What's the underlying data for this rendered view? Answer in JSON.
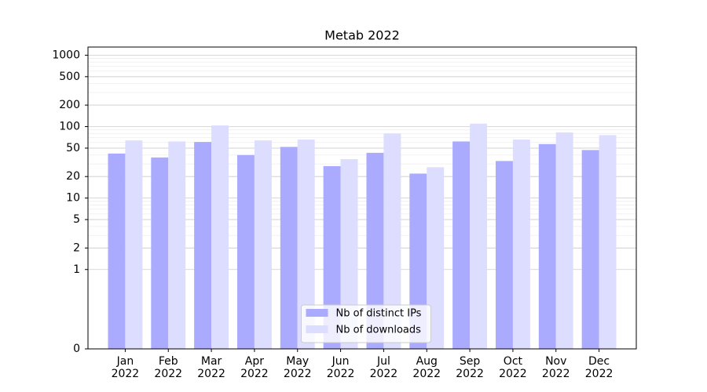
{
  "chart_data": {
    "type": "bar",
    "title": "Metab 2022",
    "categories": [
      "Jan 2022",
      "Feb 2022",
      "Mar 2022",
      "Apr 2022",
      "May 2022",
      "Jun 2022",
      "Jul 2022",
      "Aug 2022",
      "Sep 2022",
      "Oct 2022",
      "Nov 2022",
      "Dec 2022"
    ],
    "series": [
      {
        "name": "Nb of distinct IPs",
        "color": "#aaaaff",
        "values": [
          42,
          37,
          61,
          40,
          52,
          28,
          43,
          22,
          62,
          33,
          57,
          47
        ]
      },
      {
        "name": "Nb of downloads",
        "color": "#ddddff",
        "values": [
          64,
          62,
          104,
          64,
          66,
          35,
          80,
          27,
          110,
          66,
          83,
          76
        ]
      }
    ],
    "yscale": "symlog",
    "linthresh": 1,
    "ylim": [
      0,
      1300
    ],
    "yticks": [
      0,
      1,
      2,
      5,
      10,
      20,
      50,
      100,
      200,
      500,
      1000
    ],
    "grid": true,
    "legend": "lower center"
  }
}
